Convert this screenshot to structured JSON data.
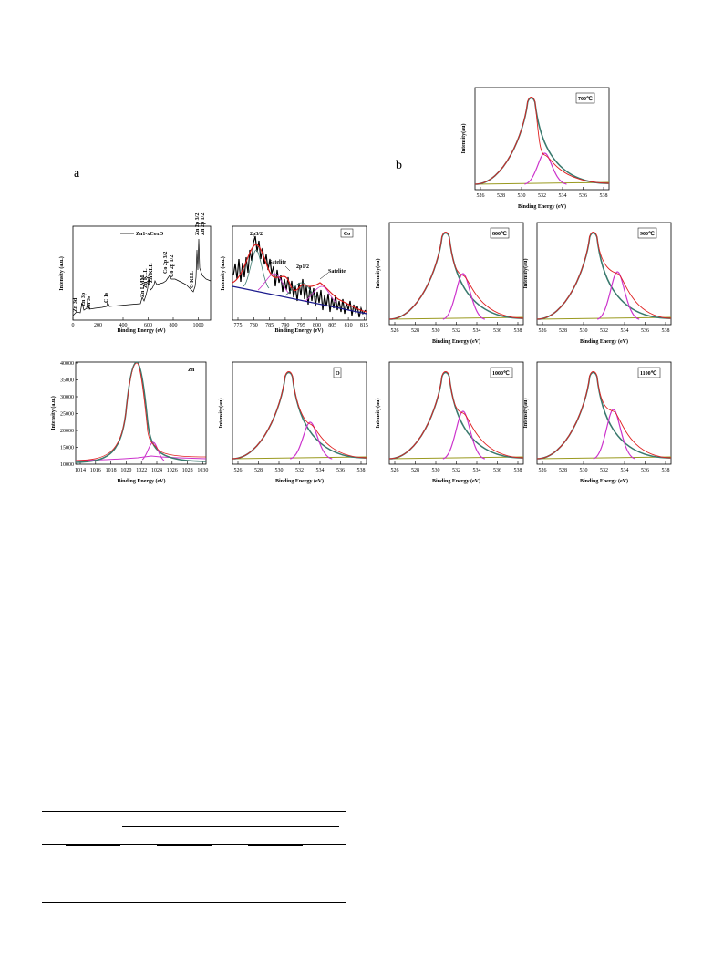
{
  "figure": {
    "label_a": "a",
    "label_b": "b"
  },
  "colors": {
    "fit": "#e02020",
    "main": "#3a7a6e",
    "second": "#cc33cc",
    "bg": "#9a9a20",
    "raw": "#000000",
    "baseline": "#1a1a8c"
  },
  "panels": {
    "survey": {
      "xlabel": "Binding Energy (eV)",
      "ylabel": "Intensity (a.u.)",
      "legend": "Zn1-xCoxO",
      "xticks": [
        "0",
        "200",
        "400",
        "600",
        "800",
        "1000"
      ],
      "annotations": [
        "Zn 3d",
        "Zn 3p",
        "Zn 3s",
        "C 1s",
        "Zn LMM",
        "Zn KLL",
        "O 1s",
        "Zn KLL",
        "Co 2p 3/2",
        "Co 2p 1/2",
        "O KLL",
        "Zn 2p 3/2",
        "Zn 2p 1/2"
      ]
    },
    "co": {
      "tag": "Co",
      "xlabel": "Binding Energy (eV)",
      "ylabel": "Intensity (a.u.)",
      "xticks": [
        "775",
        "780",
        "785",
        "790",
        "795",
        "800",
        "805",
        "810",
        "815"
      ],
      "annotations": [
        "2p3/2",
        "Satelite",
        "2p1/2",
        "Satelite"
      ]
    },
    "zn": {
      "tag": "Zn",
      "xlabel": "Binding Energy (eV)",
      "ylabel": "Intensity (a.u.)",
      "xticks": [
        "1014",
        "1016",
        "1018",
        "1020",
        "1022",
        "1024",
        "1026",
        "1028",
        "1030"
      ],
      "yticks": [
        "10000",
        "15000",
        "20000",
        "25000",
        "30000",
        "35000",
        "40000"
      ]
    },
    "o": {
      "tag": "O",
      "xlabel": "Binding Energy (eV)",
      "ylabel": "Intensity(au)"
    },
    "t700": {
      "tag": "700℃",
      "xlabel": "Binding Energy (eV)",
      "ylabel": "Intensity(au)"
    },
    "t800": {
      "tag": "800℃",
      "xlabel": "Binding Energy (eV)",
      "ylabel": "Intensity(au)"
    },
    "t900": {
      "tag": "900℃",
      "xlabel": "Binding Energy (eV)",
      "ylabel": "Intensity(au)"
    },
    "t1000": {
      "tag": "1000℃",
      "xlabel": "Binding Energy (eV)",
      "ylabel": "Intensity(au)"
    },
    "t1100": {
      "tag": "1100℃",
      "xlabel": "Binding Energy (eV)",
      "ylabel": "Intensity(au)"
    }
  },
  "o_xticks": [
    "526",
    "528",
    "530",
    "532",
    "534",
    "536",
    "538"
  ],
  "chart_data": [
    {
      "type": "line",
      "title": "",
      "xlabel": "Binding Energy (eV)",
      "ylabel": "Intensity (a.u.)",
      "xlim": [
        0,
        1100
      ],
      "series": [
        {
          "name": "Zn1-xCoxO",
          "x": [
            0,
            10,
            90,
            140,
            285,
            500,
            530,
            560,
            600,
            780,
            800,
            1000,
            1022,
            1045,
            1100
          ],
          "y": [
            3,
            9,
            15,
            18,
            20,
            42,
            58,
            48,
            50,
            55,
            60,
            32,
            70,
            88,
            60
          ]
        }
      ]
    },
    {
      "type": "line",
      "title": "",
      "xlabel": "Binding Energy (eV)",
      "ylabel": "Intensity (a.u.)",
      "xlim": [
        772,
        815
      ],
      "series": [
        {
          "x": [
            773,
            776,
            779,
            781,
            784,
            786,
            790,
            794,
            797,
            801,
            804,
            810,
            815
          ],
          "y": [
            55,
            54,
            60,
            82,
            62,
            58,
            40,
            36,
            45,
            33,
            38,
            22,
            15
          ]
        }
      ]
    },
    {
      "type": "line",
      "title": "",
      "xlabel": "Binding Energy (eV)",
      "ylabel": "Intensity (a.u.)",
      "xlim": [
        1013,
        1030
      ],
      "ylim": [
        10000,
        40000
      ],
      "series": [
        {
          "x": [
            1013,
            1018,
            1020,
            1021.5,
            1023,
            1024,
            1026,
            1030
          ],
          "y": [
            11000,
            12000,
            24000,
            39500,
            20000,
            15500,
            11500,
            12000
          ]
        }
      ]
    },
    {
      "type": "line",
      "title": "",
      "xlabel": "Binding Energy (eV)",
      "ylabel": "Intensity(au)",
      "xlim": [
        525,
        538
      ],
      "series": [
        {
          "name": "O",
          "x": [
            525,
            528,
            529.5,
            530.2,
            531,
            532,
            533,
            535,
            538
          ],
          "y": [
            4,
            6,
            40,
            90,
            45,
            40,
            12,
            6,
            5
          ]
        }
      ]
    }
  ],
  "table": {
    "rows": 3
  }
}
